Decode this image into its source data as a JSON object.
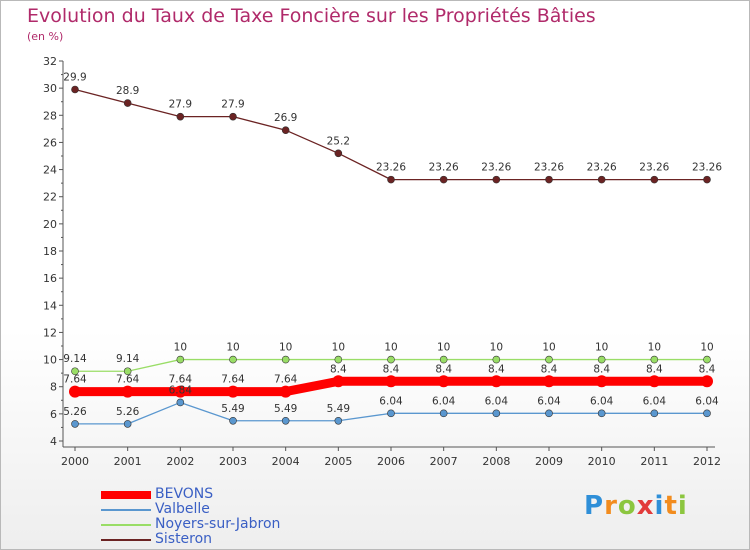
{
  "title": "Evolution du Taux de Taxe Foncière sur les Propriétés Bâties",
  "subtitle": "(en %)",
  "logo": {
    "letters": [
      "P",
      "r",
      "o",
      "x",
      "i",
      "t",
      "i"
    ],
    "colors": [
      "#2f8fd8",
      "#f28c1e",
      "#8cc63f",
      "#e23b3b",
      "#2f8fd8",
      "#f28c1e",
      "#8cc63f"
    ]
  },
  "chart_data": {
    "type": "line",
    "x": [
      "2000",
      "2001",
      "2002",
      "2003",
      "2004",
      "2005",
      "2006",
      "2007",
      "2008",
      "2009",
      "2010",
      "2011",
      "2012"
    ],
    "y_ticks": [
      "4",
      "6",
      "8",
      "10",
      "12",
      "14",
      "16",
      "18",
      "20",
      "22",
      "24",
      "26",
      "28",
      "30",
      "32"
    ],
    "ylim": [
      4,
      32
    ],
    "grid": false,
    "legend_position": "bottom-left",
    "series": [
      {
        "name": "BEVONS",
        "color": "#ff0000",
        "values": [
          7.64,
          7.64,
          7.64,
          7.64,
          7.64,
          8.4,
          8.4,
          8.4,
          8.4,
          8.4,
          8.4,
          8.4,
          8.4
        ],
        "labels": [
          "7.64",
          "7.64",
          "7.64",
          "7.64",
          "7.64",
          "8.4",
          "8.4",
          "8.4",
          "8.4",
          "8.4",
          "8.4",
          "8.4",
          "8.4"
        ]
      },
      {
        "name": "Valbelle",
        "color": "#5a97cf",
        "values": [
          5.26,
          5.26,
          6.84,
          5.49,
          5.49,
          5.49,
          6.04,
          6.04,
          6.04,
          6.04,
          6.04,
          6.04,
          6.04
        ],
        "labels": [
          "5.26",
          "5.26",
          "6.84",
          "5.49",
          "5.49",
          "5.49",
          "6.04",
          "6.04",
          "6.04",
          "6.04",
          "6.04",
          "6.04",
          "6.04"
        ]
      },
      {
        "name": "Noyers-sur-Jabron",
        "color": "#99dd66",
        "values": [
          9.14,
          9.14,
          10,
          10,
          10,
          10,
          10,
          10,
          10,
          10,
          10,
          10,
          10
        ],
        "labels": [
          "9.14",
          "9.14",
          "10",
          "10",
          "10",
          "10",
          "10",
          "10",
          "10",
          "10",
          "10",
          "10",
          "10"
        ]
      },
      {
        "name": "Sisteron",
        "color": "#6b2323",
        "values": [
          29.9,
          28.9,
          27.9,
          27.9,
          26.9,
          25.2,
          23.26,
          23.26,
          23.26,
          23.26,
          23.26,
          23.26,
          23.26
        ],
        "labels": [
          "29.9",
          "28.9",
          "27.9",
          "27.9",
          "26.9",
          "25.2",
          "23.26",
          "23.26",
          "23.26",
          "23.26",
          "23.26",
          "23.26",
          "23.26"
        ]
      }
    ]
  }
}
